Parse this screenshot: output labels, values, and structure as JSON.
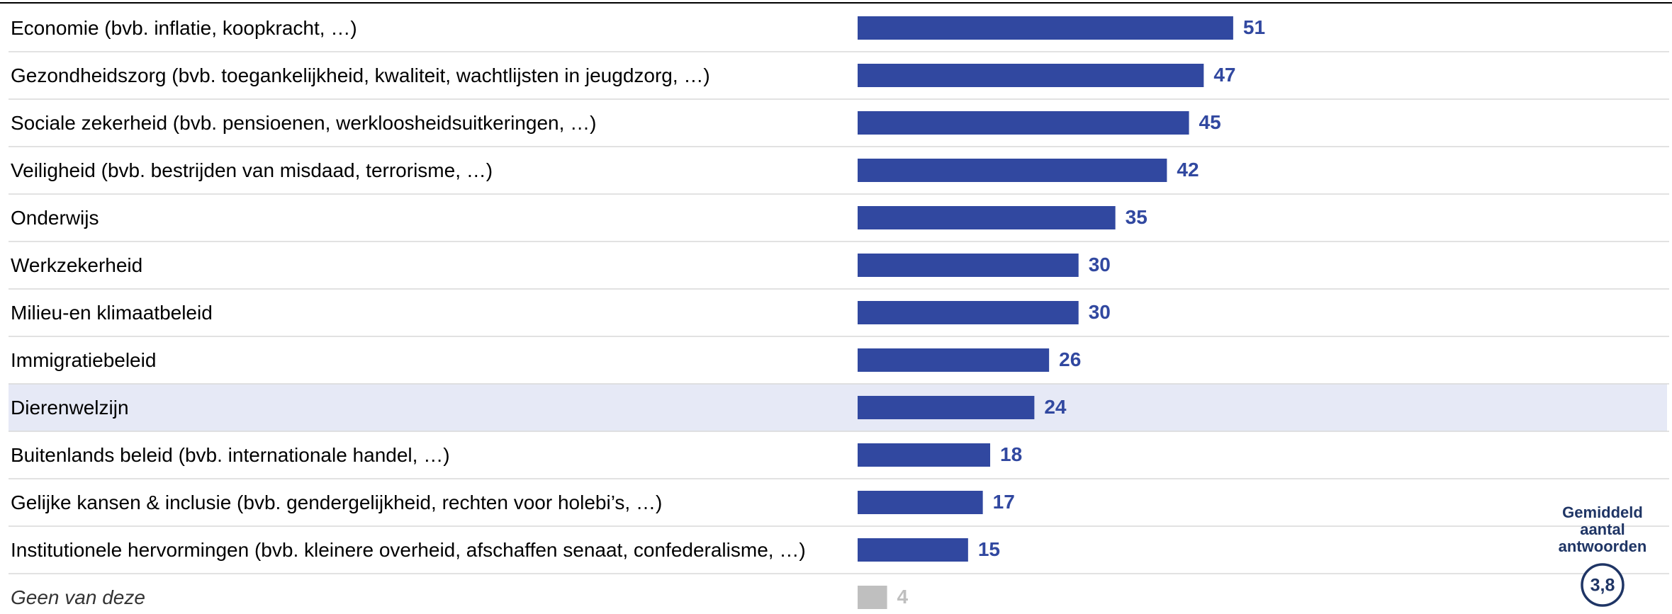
{
  "chart_data": {
    "type": "barh",
    "categories": [
      "Economie (bvb. inflatie, koopkracht, …)",
      "Gezondheidszorg (bvb. toegankelijkheid, kwaliteit, wachtlijsten in jeugdzorg, …)",
      "Sociale zekerheid (bvb. pensioenen, werkloosheidsuitkeringen, …)",
      "Veiligheid (bvb. bestrijden van misdaad, terrorisme, …)",
      "Onderwijs",
      "Werkzekerheid",
      "Milieu-en klimaatbeleid",
      "Immigratiebeleid",
      "Dierenwelzijn",
      "Buitenlands beleid (bvb. internationale handel, …)",
      "Gelijke kansen & inclusie (bvb. gendergelijkheid, rechten voor holebi’s, …)",
      "Institutionele hervormingen (bvb. kleinere overheid, afschaffen senaat, confederalisme, …)",
      "Geen van deze"
    ],
    "values": [
      51,
      47,
      45,
      42,
      35,
      30,
      30,
      26,
      24,
      18,
      17,
      15,
      4
    ],
    "color": "#3148a0",
    "muted_index": 12,
    "muted_color": "#bfbfbf",
    "highlight_index": 8,
    "highlight_color": "#e6e9f6",
    "xlim": [
      0,
      100
    ],
    "average": {
      "label": "Gemiddeld aantal antwoorden",
      "value": 3.8,
      "value_label": "3,8",
      "color": "#1f3565"
    }
  }
}
